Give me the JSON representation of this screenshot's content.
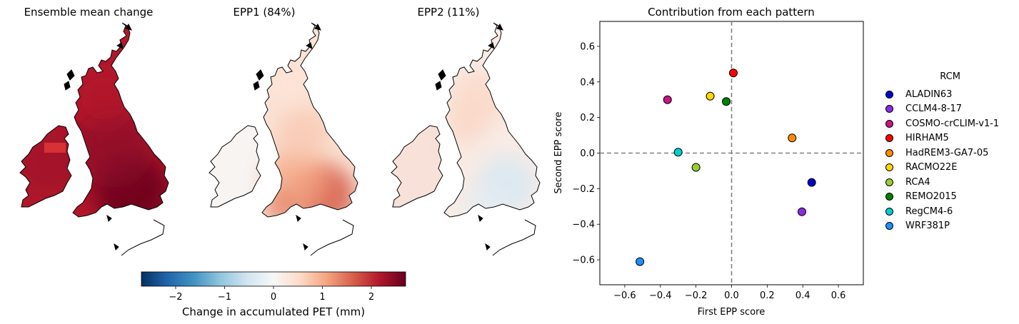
{
  "maps": [
    {
      "title": "Ensemble mean change",
      "style": "ensemble"
    },
    {
      "title": "EPP1 (84%)",
      "style": "epp1"
    },
    {
      "title": "EPP2 (11%)",
      "style": "epp2"
    }
  ],
  "colorbar": {
    "label": "Change in accumulated PET (mm)",
    "range": [
      -2.7,
      2.7
    ],
    "ticks": [
      -2,
      -1,
      0,
      1,
      2
    ],
    "tick_labels": [
      "−2",
      "−1",
      "0",
      "1",
      "2"
    ],
    "colormap": [
      "#053061",
      "#2166ac",
      "#4393c3",
      "#92c5de",
      "#d1e5f0",
      "#f7f7f7",
      "#fddbc7",
      "#f4a582",
      "#d6604d",
      "#b2182b",
      "#67001f"
    ]
  },
  "chart_data": {
    "type": "scatter",
    "title": "Contribution from each pattern",
    "xlabel": "First EPP score",
    "ylabel": "Second EPP score",
    "xlim": [
      -0.74,
      0.74
    ],
    "ylim": [
      -0.74,
      0.74
    ],
    "xticks": [
      -0.6,
      -0.4,
      -0.2,
      0.0,
      0.2,
      0.4,
      0.6
    ],
    "xtick_labels": [
      "−0.6",
      "−0.4",
      "−0.2",
      "0.0",
      "0.2",
      "0.4",
      "0.6"
    ],
    "yticks": [
      -0.6,
      -0.4,
      -0.2,
      0.0,
      0.2,
      0.4,
      0.6
    ],
    "ytick_labels": [
      "−0.6",
      "−0.4",
      "−0.2",
      "0.0",
      "0.2",
      "0.4",
      "0.6"
    ],
    "reference_lines": {
      "x": 0,
      "y": 0,
      "style": "dashed",
      "color": "#808080"
    },
    "legend_title": "RCM",
    "legend_position": "right",
    "series": [
      {
        "name": "ALADIN63",
        "color": "#0000cd",
        "x": 0.45,
        "y": -0.165
      },
      {
        "name": "CCLM4-8-17",
        "color": "#8a2be2",
        "x": 0.395,
        "y": -0.33
      },
      {
        "name": "COSMO-crCLIM-v1-1",
        "color": "#c71585",
        "x": -0.36,
        "y": 0.3
      },
      {
        "name": "HIRHAM5",
        "color": "#ff0000",
        "x": 0.01,
        "y": 0.45
      },
      {
        "name": "HadREM3-GA7-05",
        "color": "#ff8c00",
        "x": 0.34,
        "y": 0.085
      },
      {
        "name": "RACMO22E",
        "color": "#ffd700",
        "x": -0.12,
        "y": 0.32
      },
      {
        "name": "RCA4",
        "color": "#9acd32",
        "x": -0.2,
        "y": -0.08
      },
      {
        "name": "REMO2015",
        "color": "#008000",
        "x": -0.03,
        "y": 0.29
      },
      {
        "name": "RegCM4-6",
        "color": "#00ced1",
        "x": -0.3,
        "y": 0.005
      },
      {
        "name": "WRF381P",
        "color": "#1e90ff",
        "x": -0.515,
        "y": -0.61
      }
    ]
  }
}
